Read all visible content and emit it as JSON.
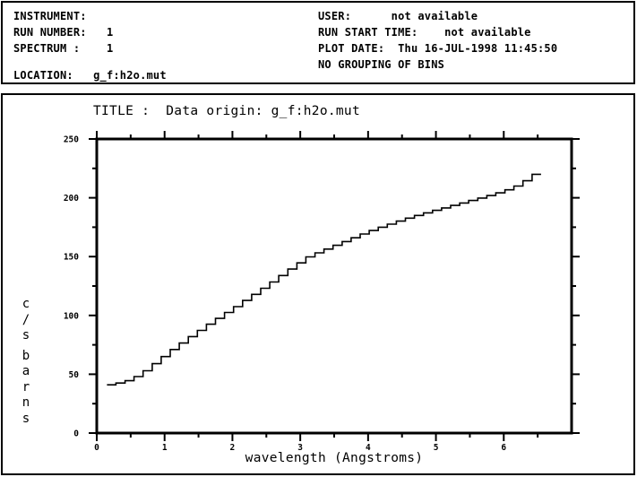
{
  "header": {
    "left": [
      {
        "text": "INSTRUMENT:"
      },
      {
        "text": "RUN NUMBER:   1"
      },
      {
        "text": "SPECTRUM :    1"
      },
      {
        "text": "LOCATION:   g_f:h2o.mut"
      }
    ],
    "right": [
      {
        "text": "USER:      not available"
      },
      {
        "text": "RUN START TIME:    not available"
      },
      {
        "text": "PLOT DATE:  Thu 16-JUL-1998 11:45:50"
      },
      {
        "text": "NO GROUPING OF BINS"
      }
    ]
  },
  "chart_data": {
    "type": "line",
    "style": "histogram-step",
    "title": "TITLE :  Data origin: g_f:h2o.mut",
    "xlabel": "wavelength (Angstroms)",
    "ylabel": "c/s barns",
    "xlim": [
      0,
      7
    ],
    "ylim": [
      0,
      250
    ],
    "x_major_ticks": [
      0,
      1,
      2,
      3,
      4,
      5,
      6
    ],
    "x_minor_ticks": [
      0.5,
      1.5,
      2.5,
      3.5,
      4.5,
      5.5,
      6.5
    ],
    "y_major_ticks": [
      0,
      50,
      100,
      150,
      200,
      250
    ],
    "y_minor_ticks": [
      25,
      75,
      125,
      175,
      225
    ],
    "grid": false,
    "legend": null,
    "line_color": "#000000",
    "background_color": "#ffffff",
    "bin_edges": [
      0.15,
      0.283,
      0.417,
      0.55,
      0.683,
      0.817,
      0.95,
      1.083,
      1.217,
      1.35,
      1.483,
      1.617,
      1.75,
      1.883,
      2.017,
      2.15,
      2.283,
      2.417,
      2.55,
      2.683,
      2.817,
      2.95,
      3.083,
      3.217,
      3.35,
      3.483,
      3.617,
      3.75,
      3.883,
      4.017,
      4.15,
      4.283,
      4.417,
      4.55,
      4.683,
      4.817,
      4.95,
      5.083,
      5.217,
      5.35,
      5.483,
      5.617,
      5.75,
      5.883,
      6.017,
      6.15,
      6.283,
      6.417,
      6.55
    ],
    "values": [
      41.0,
      42.5,
      44.5,
      48.0,
      53.0,
      59.0,
      65.0,
      71.0,
      76.5,
      82.0,
      87.3,
      92.5,
      97.5,
      102.5,
      107.5,
      112.7,
      117.9,
      123.1,
      128.4,
      133.9,
      139.4,
      144.7,
      149.8,
      153.2,
      156.4,
      159.6,
      162.8,
      166.0,
      169.2,
      172.2,
      175.0,
      177.6,
      180.2,
      182.7,
      185.0,
      187.2,
      189.3,
      191.4,
      193.5,
      195.6,
      197.7,
      199.8,
      201.9,
      204.2,
      206.8,
      210.0,
      214.5,
      220.0
    ]
  }
}
